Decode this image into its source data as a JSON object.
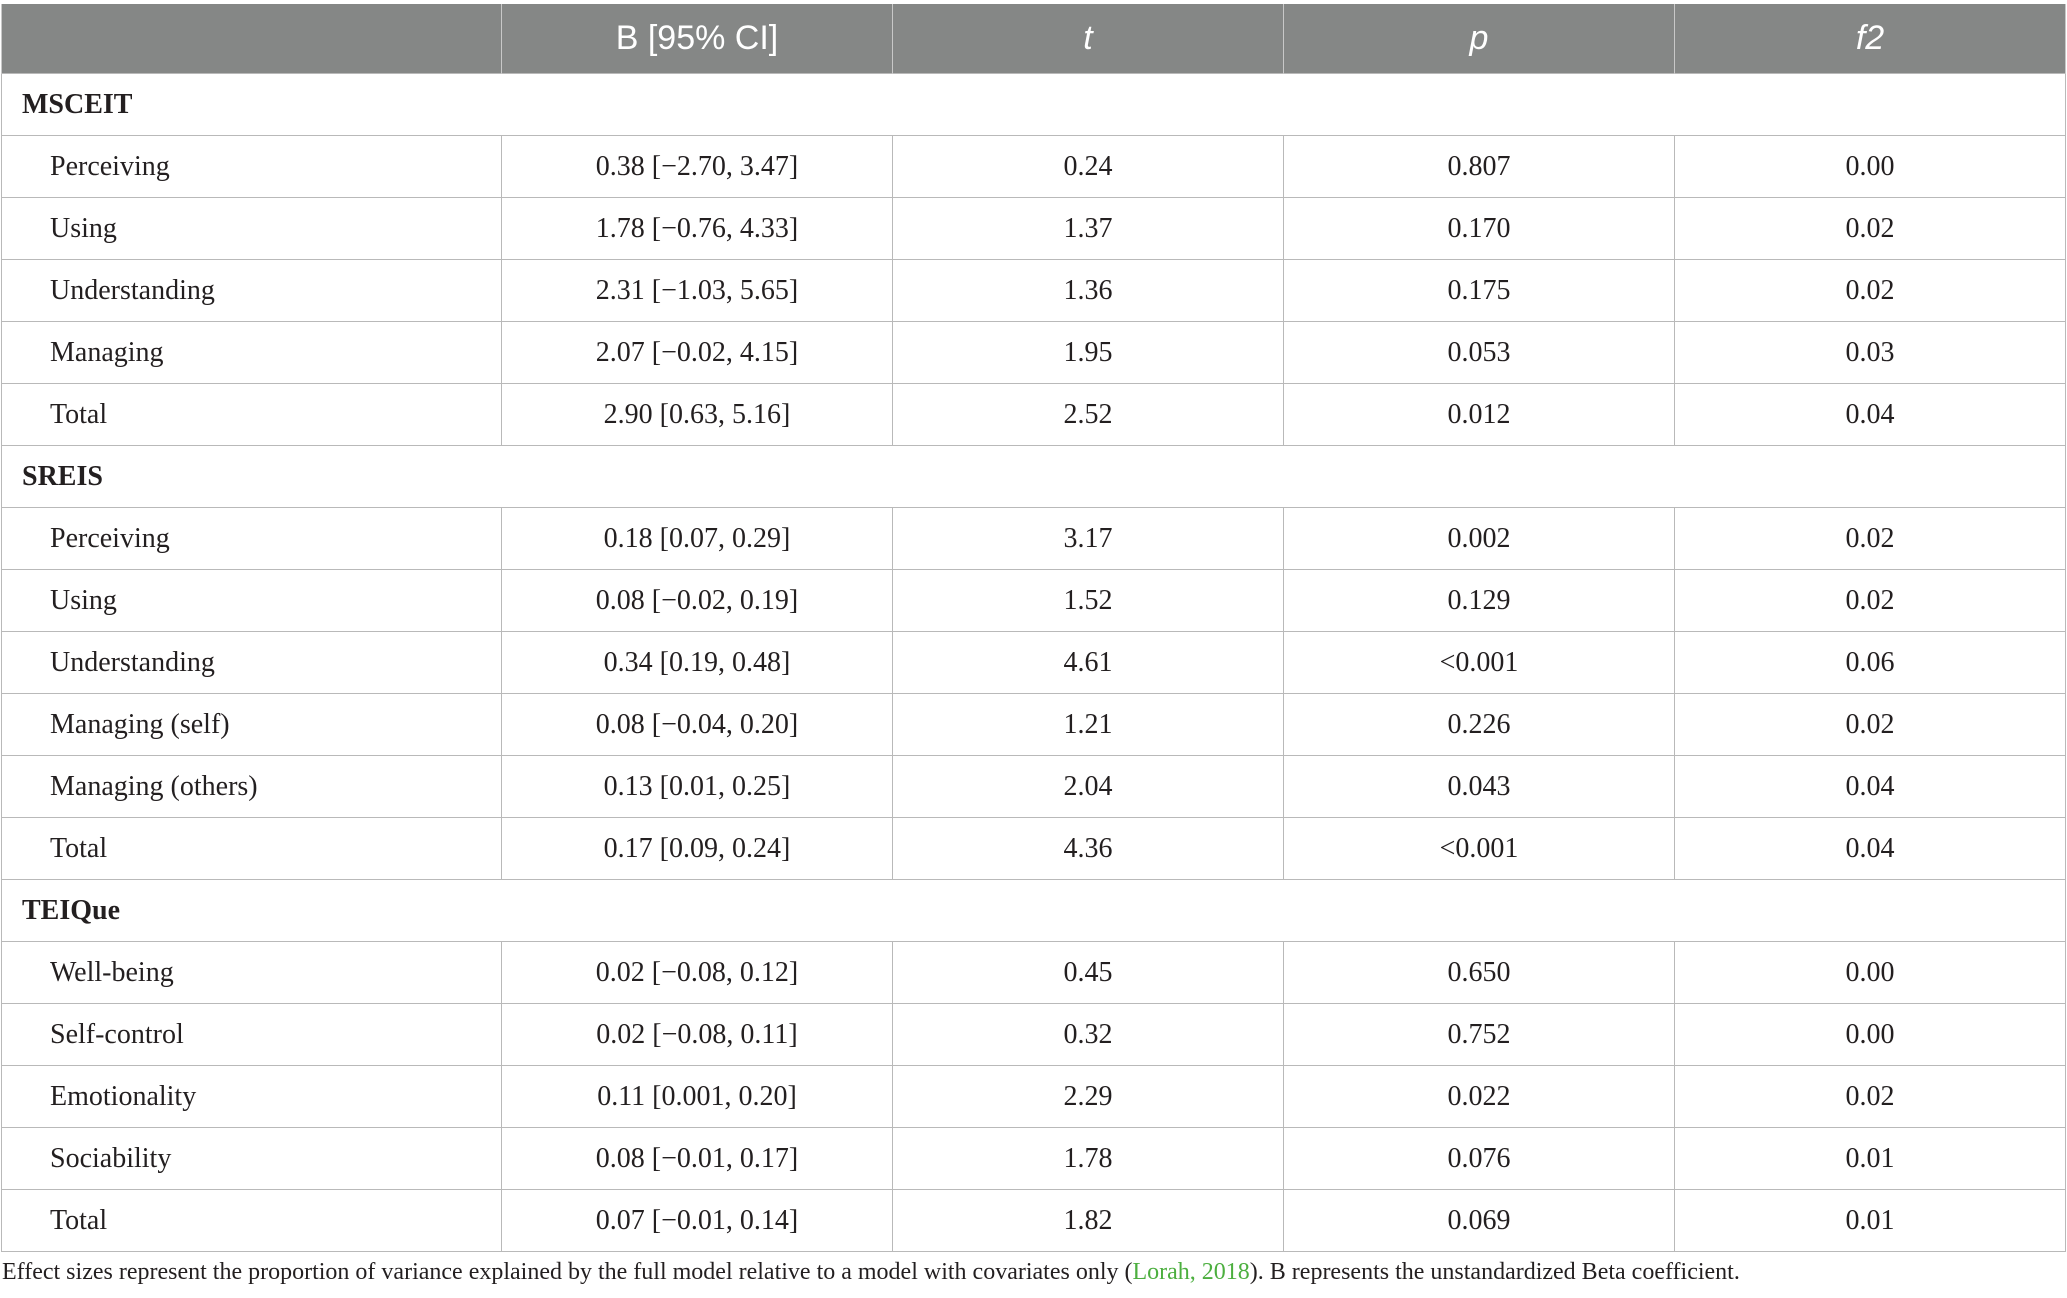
{
  "columns": [
    "",
    "B [95% CI]",
    "t",
    "p",
    "f2"
  ],
  "sections": [
    {
      "name": "MSCEIT",
      "rows": [
        {
          "label": "Perceiving",
          "b": "0.38 [−2.70, 3.47]",
          "t": "0.24",
          "p": "0.807",
          "f2": "0.00"
        },
        {
          "label": "Using",
          "b": "1.78 [−0.76, 4.33]",
          "t": "1.37",
          "p": "0.170",
          "f2": "0.02"
        },
        {
          "label": "Understanding",
          "b": "2.31 [−1.03, 5.65]",
          "t": "1.36",
          "p": "0.175",
          "f2": "0.02"
        },
        {
          "label": "Managing",
          "b": "2.07 [−0.02, 4.15]",
          "t": "1.95",
          "p": "0.053",
          "f2": "0.03"
        },
        {
          "label": "Total",
          "b": "2.90 [0.63, 5.16]",
          "t": "2.52",
          "p": "0.012",
          "f2": "0.04"
        }
      ]
    },
    {
      "name": "SREIS",
      "rows": [
        {
          "label": "Perceiving",
          "b": "0.18 [0.07, 0.29]",
          "t": "3.17",
          "p": "0.002",
          "f2": "0.02"
        },
        {
          "label": "Using",
          "b": "0.08 [−0.02, 0.19]",
          "t": "1.52",
          "p": "0.129",
          "f2": "0.02"
        },
        {
          "label": "Understanding",
          "b": "0.34 [0.19, 0.48]",
          "t": "4.61",
          "p": "<0.001",
          "f2": "0.06"
        },
        {
          "label": "Managing (self)",
          "b": "0.08 [−0.04, 0.20]",
          "t": "1.21",
          "p": "0.226",
          "f2": "0.02"
        },
        {
          "label": "Managing (others)",
          "b": "0.13 [0.01, 0.25]",
          "t": "2.04",
          "p": "0.043",
          "f2": "0.04"
        },
        {
          "label": "Total",
          "b": "0.17 [0.09, 0.24]",
          "t": "4.36",
          "p": "<0.001",
          "f2": "0.04"
        }
      ]
    },
    {
      "name": "TEIQue",
      "rows": [
        {
          "label": "Well-being",
          "b": "0.02 [−0.08, 0.12]",
          "t": "0.45",
          "p": "0.650",
          "f2": "0.00"
        },
        {
          "label": "Self-control",
          "b": "0.02 [−0.08, 0.11]",
          "t": "0.32",
          "p": "0.752",
          "f2": "0.00"
        },
        {
          "label": "Emotionality",
          "b": "0.11 [0.001, 0.20]",
          "t": "2.29",
          "p": "0.022",
          "f2": "0.02"
        },
        {
          "label": "Sociability",
          "b": "0.08 [−0.01, 0.17]",
          "t": "1.78",
          "p": "0.076",
          "f2": "0.01"
        },
        {
          "label": "Total",
          "b": "0.07 [−0.01, 0.14]",
          "t": "1.82",
          "p": "0.069",
          "f2": "0.01"
        }
      ]
    }
  ],
  "note": {
    "before": "Effect sizes represent the proportion of variance explained by the full model relative to a model with covariates only (",
    "citation": "Lorah, 2018",
    "after": "). B represents the unstandardized Beta coefficient."
  },
  "colors": {
    "header_bg": "#858786",
    "citation": "#4caf3f"
  }
}
